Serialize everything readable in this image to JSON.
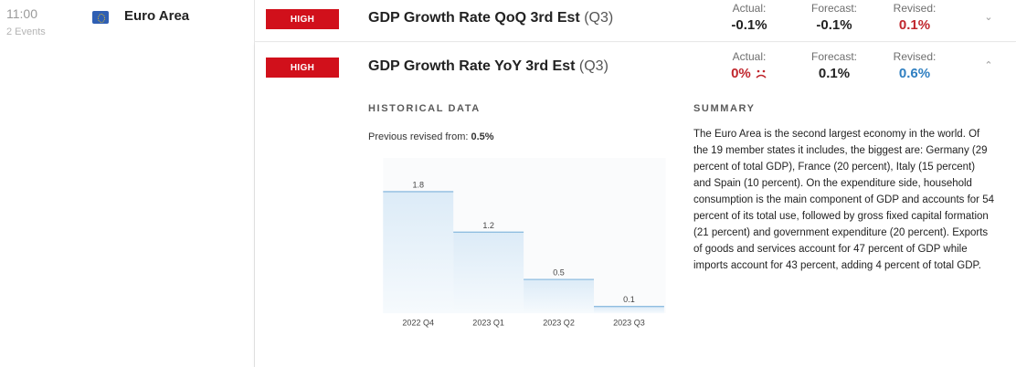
{
  "left": {
    "time": "11:00",
    "events_count": "2 Events",
    "country": "Euro Area"
  },
  "events": [
    {
      "badge": "HIGH",
      "title": "GDP Growth Rate QoQ 3rd Est",
      "period": "(Q3)",
      "actual_label": "Actual:",
      "actual": "-0.1%",
      "forecast_label": "Forecast:",
      "forecast": "-0.1%",
      "revised_label": "Revised:",
      "revised": "0.1%"
    },
    {
      "badge": "HIGH",
      "title": "GDP Growth Rate YoY 3rd Est",
      "period": "(Q3)",
      "actual_label": "Actual:",
      "actual": "0%",
      "forecast_label": "Forecast:",
      "forecast": "0.1%",
      "revised_label": "Revised:",
      "revised": "0.6%"
    }
  ],
  "details": {
    "historical_header": "HISTORICAL DATA",
    "prev_revised_label": "Previous revised from:",
    "prev_revised_value": "0.5%",
    "summary_header": "SUMMARY",
    "summary_text": "The Euro Area is the second largest economy in the world. Of the 19 member states it includes, the biggest are: Germany (29 percent of total GDP), France (20 percent), Italy (15 percent) and Spain (10 percent). On the expenditure side, household consumption is the main component of GDP and accounts for 54 percent of its total use, followed by gross fixed capital formation (21 percent) and government expenditure (20 percent). Exports of goods and services account for 47 percent of GDP while imports account for 43 percent, adding 4 percent of total GDP."
  },
  "colors": {
    "badge": "#d1101b",
    "negative": "#c0262d",
    "positive": "#2f7fc1",
    "bar_line": "#8fbde0",
    "bar_fill_top": "#dcebf7",
    "bar_fill_bottom": "#f6fafd"
  },
  "chart_data": {
    "type": "bar",
    "title": "",
    "categories": [
      "2022 Q4",
      "2023 Q1",
      "2023 Q2",
      "2023 Q3"
    ],
    "values": [
      1.8,
      1.2,
      0.5,
      0.1
    ],
    "value_labels": [
      "1.8",
      "1.2",
      "0.5",
      "0.1"
    ],
    "xlabel": "",
    "ylabel": "",
    "ylim": [
      0,
      2.3
    ]
  }
}
